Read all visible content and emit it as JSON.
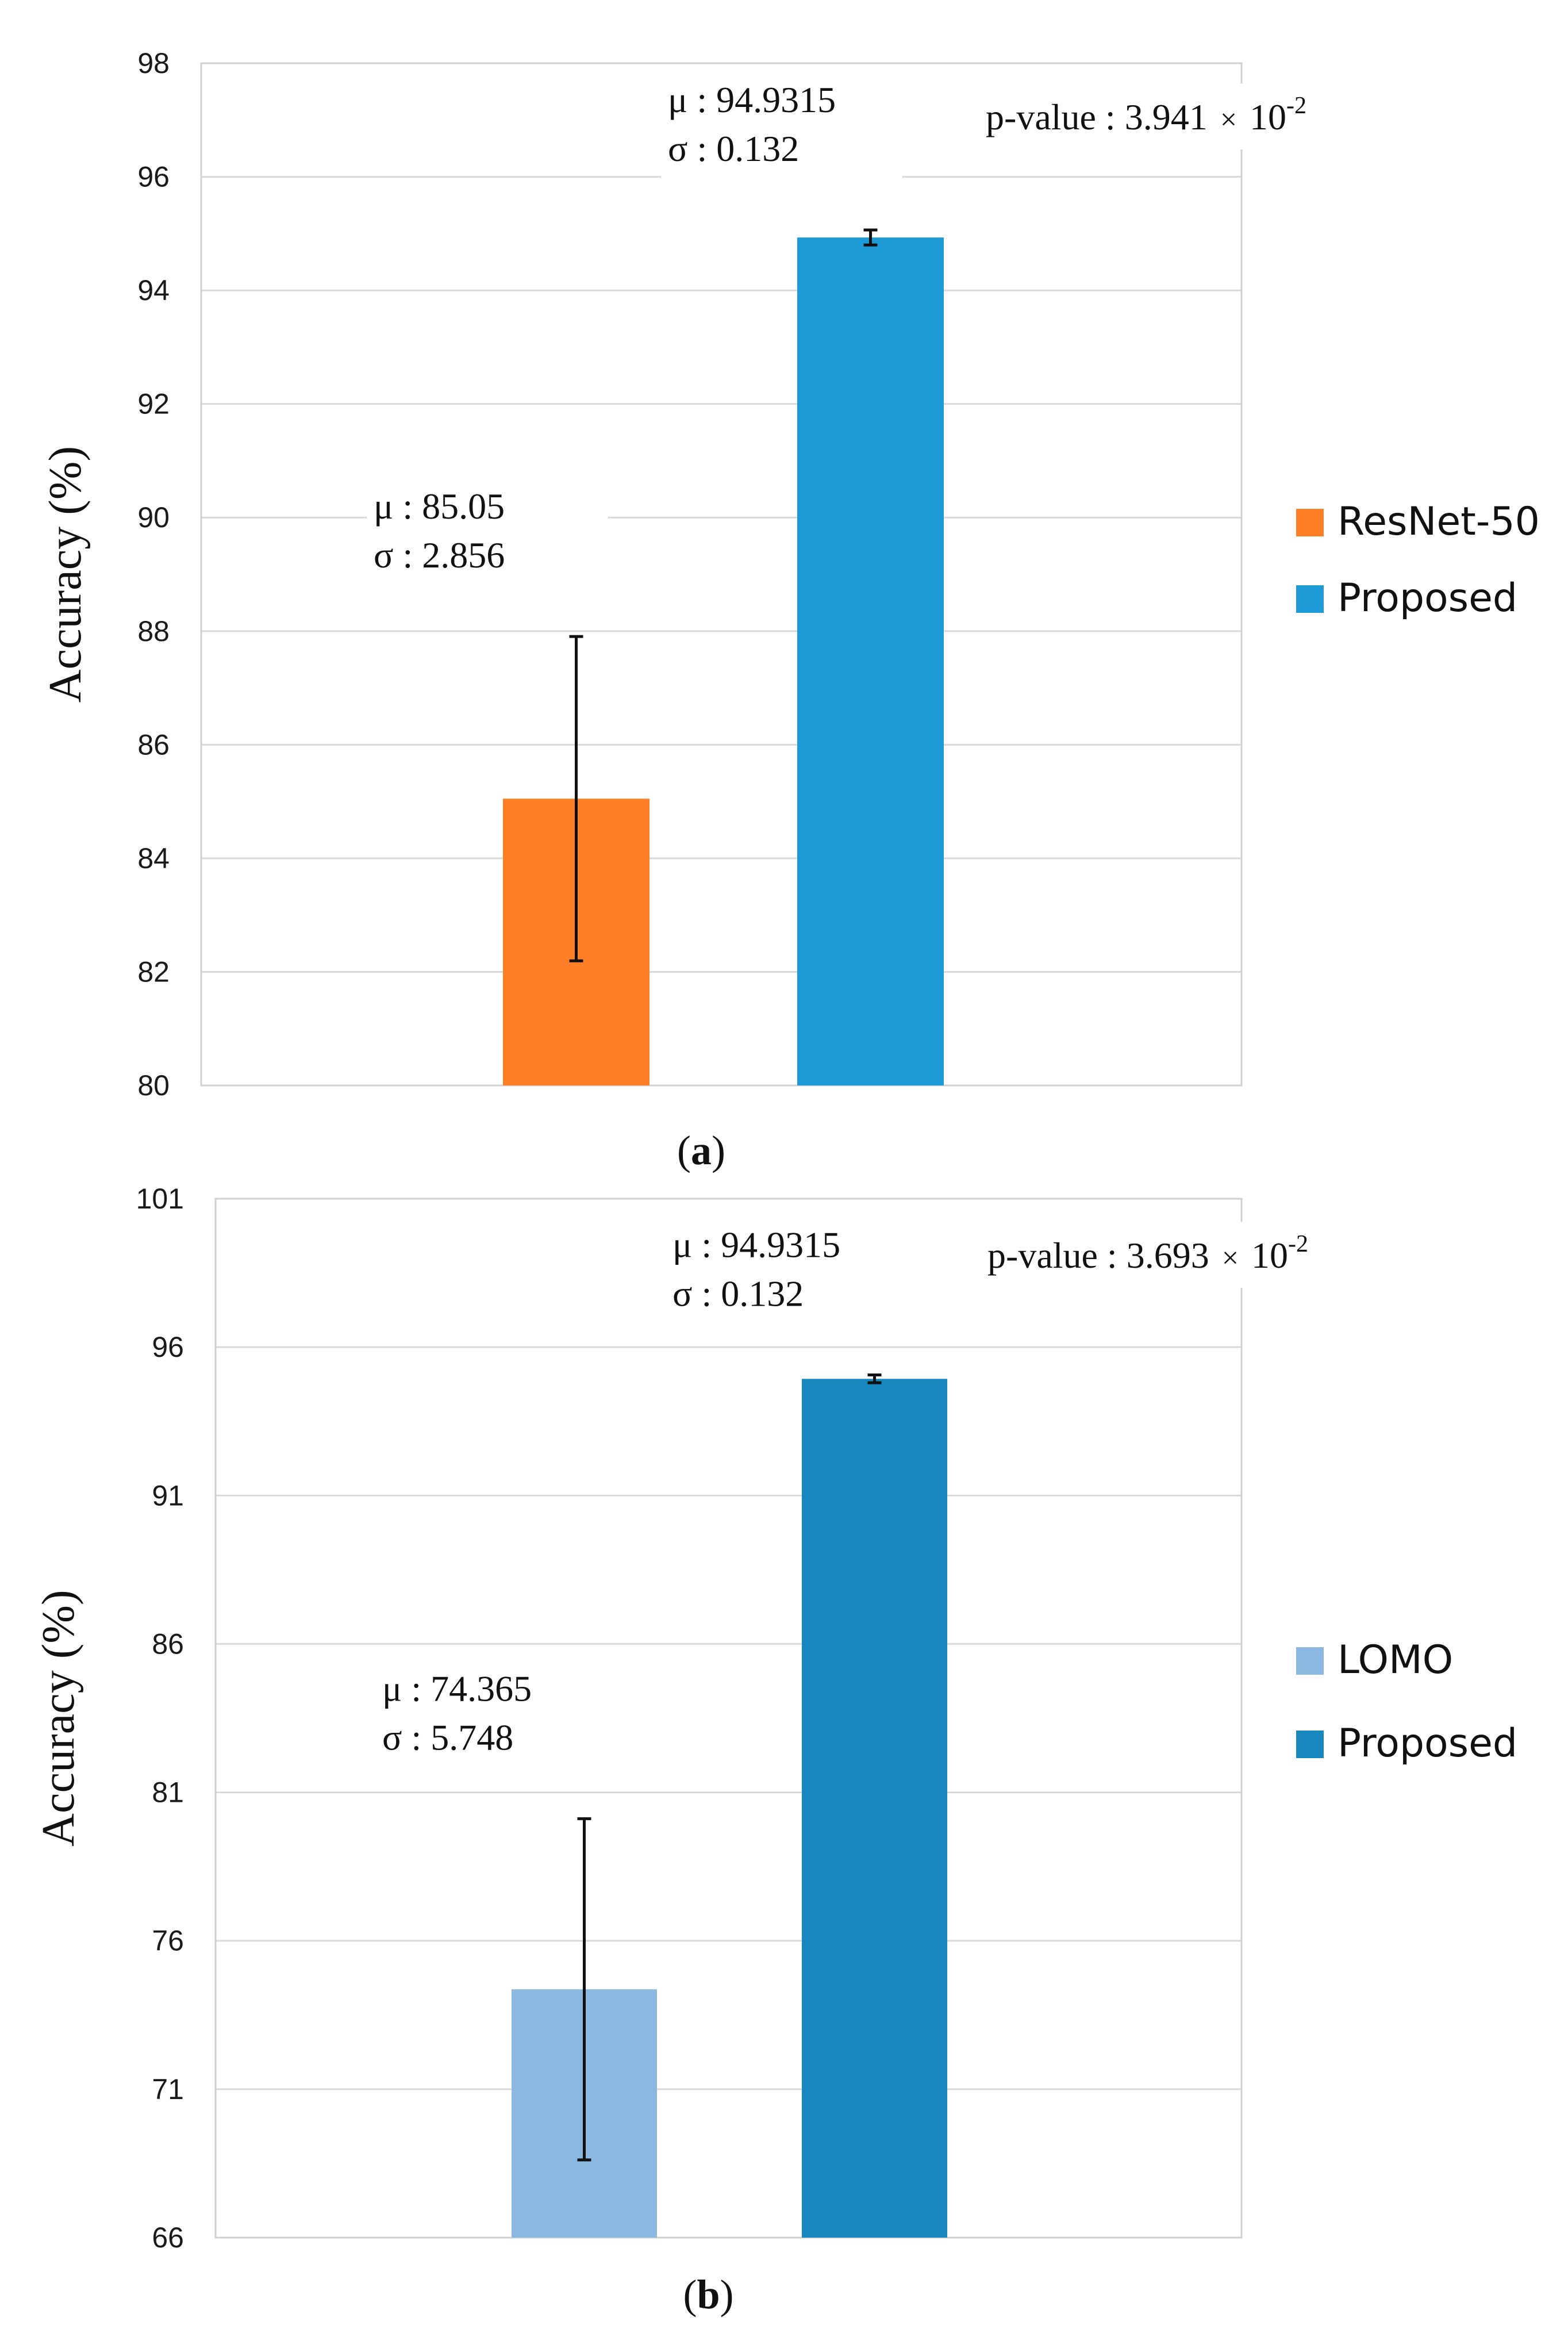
{
  "chart_data": [
    {
      "type": "bar",
      "panel_label": "a",
      "ylabel": "Accuracy (%)",
      "ylim": [
        80,
        98
      ],
      "yticks": [
        80,
        82,
        84,
        86,
        88,
        90,
        92,
        94,
        96,
        98
      ],
      "grid": true,
      "legend_position": "right",
      "categories": [
        "ResNet-50",
        "Proposed"
      ],
      "values": [
        85.05,
        94.9315
      ],
      "errors": [
        2.856,
        0.132
      ],
      "colors": [
        "#ff7f27",
        "#1e9bd7"
      ],
      "annotations": [
        {
          "mu": "μ : 85.05",
          "sigma": "σ : 2.856"
        },
        {
          "mu": "μ : 94.9315",
          "sigma": "σ : 0.132"
        }
      ],
      "pvalue": {
        "prefix": "p-value : 3.941",
        "times": "×",
        "base": "10",
        "exponent": "-2"
      }
    },
    {
      "type": "bar",
      "panel_label": "b",
      "ylabel": "Accuracy (%)",
      "ylim": [
        66,
        101
      ],
      "yticks": [
        66,
        71,
        76,
        81,
        86,
        91,
        96,
        101
      ],
      "grid": true,
      "legend_position": "right",
      "categories": [
        "LOMO",
        "Proposed"
      ],
      "values": [
        74.365,
        94.9315
      ],
      "errors": [
        5.748,
        0.132
      ],
      "colors": [
        "#8ab8e0",
        "#1787bd"
      ],
      "annotations": [
        {
          "mu": "μ : 74.365",
          "sigma": "σ : 5.748"
        },
        {
          "mu": "μ : 94.9315",
          "sigma": "σ : 0.132"
        }
      ],
      "pvalue": {
        "prefix": "p-value : 3.693",
        "times": "×",
        "base": "10",
        "exponent": "-2"
      }
    }
  ]
}
